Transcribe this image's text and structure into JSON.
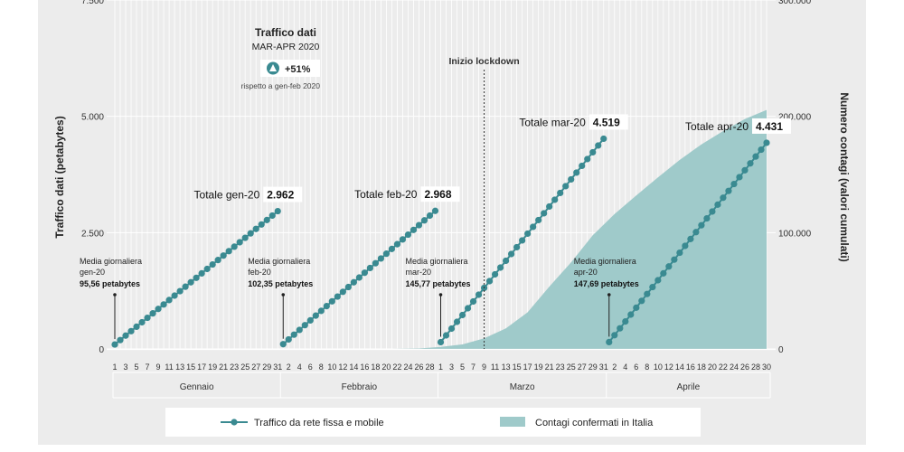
{
  "chart_data": {
    "type": "line",
    "left_axis": {
      "label": "Traffico dati (petabytes)",
      "ticks": [
        "0",
        "2.500",
        "5.000",
        "7.500"
      ],
      "tick_values": [
        0,
        2500,
        5000,
        7500
      ],
      "ylim": [
        0,
        7500
      ]
    },
    "right_axis": {
      "label": "Numero contagi (valori cumulati)",
      "ticks": [
        "0",
        "100.000",
        "200.000",
        "300.000"
      ],
      "tick_values": [
        0,
        100000,
        200000,
        300000
      ],
      "ylim": [
        0,
        300000
      ]
    },
    "months": [
      {
        "name": "Gennaio",
        "days": 31,
        "tick_labels": [
          "1",
          "3",
          "5",
          "7",
          "9",
          "11",
          "13",
          "15",
          "17",
          "19",
          "21",
          "23",
          "25",
          "27",
          "29",
          "31"
        ],
        "total_label": "Totale gen-20",
        "total_value": "2.962",
        "total": 2962,
        "avg_lines": [
          "Media giornaliera",
          "gen-20"
        ],
        "avg_value": "95,56  petabytes",
        "avg": 95.56
      },
      {
        "name": "Febbraio",
        "days": 29,
        "tick_labels": [
          "2",
          "4",
          "6",
          "8",
          "10",
          "12",
          "14",
          "16",
          "18",
          "20",
          "22",
          "24",
          "26",
          "28"
        ],
        "total_label": "Totale feb-20",
        "total_value": "2.968",
        "total": 2968,
        "avg_lines": [
          "Media giornaliera",
          "feb-20"
        ],
        "avg_value": "102,35  petabytes",
        "avg": 102.35
      },
      {
        "name": "Marzo",
        "days": 31,
        "tick_labels": [
          "1",
          "3",
          "5",
          "7",
          "9",
          "11",
          "13",
          "15",
          "17",
          "19",
          "21",
          "23",
          "25",
          "27",
          "29",
          "31"
        ],
        "total_label": "Totale mar-20",
        "total_value": "4.519",
        "total": 4519,
        "avg_lines": [
          "Media giornaliera",
          "mar-20"
        ],
        "avg_value": "145,77  petabytes",
        "avg": 145.77
      },
      {
        "name": "Aprile",
        "days": 30,
        "tick_labels": [
          "2",
          "4",
          "6",
          "8",
          "10",
          "12",
          "14",
          "16",
          "18",
          "20",
          "22",
          "24",
          "26",
          "28",
          "30"
        ],
        "total_label": "Totale apr-20",
        "total_value": "4.431",
        "total": 4431,
        "avg_lines": [
          "Media giornaliera",
          "apr-20"
        ],
        "avg_value": "147,69  petabytes",
        "avg": 147.69
      }
    ],
    "contagi_series": {
      "name": "Contagi confermati in Italia",
      "points": [
        [
          "2020-02-21",
          0
        ],
        [
          "2020-02-26",
          400
        ],
        [
          "2020-03-01",
          1700
        ],
        [
          "2020-03-05",
          3900
        ],
        [
          "2020-03-09",
          9200
        ],
        [
          "2020-03-13",
          17700
        ],
        [
          "2020-03-17",
          31500
        ],
        [
          "2020-03-21",
          53600
        ],
        [
          "2020-03-25",
          74400
        ],
        [
          "2020-03-29",
          97700
        ],
        [
          "2020-04-02",
          116000
        ],
        [
          "2020-04-06",
          132000
        ],
        [
          "2020-04-10",
          147500
        ],
        [
          "2020-04-14",
          162500
        ],
        [
          "2020-04-18",
          175900
        ],
        [
          "2020-04-22",
          187300
        ],
        [
          "2020-04-26",
          197700
        ],
        [
          "2020-04-30",
          205500
        ]
      ]
    },
    "lockdown": {
      "date": "2020-03-09",
      "label": "Inizio lockdown"
    },
    "legend": [
      {
        "label": "Traffico da rete fissa e mobile",
        "kind": "line-dots",
        "color": "#3a8a91"
      },
      {
        "label": "Contagi confermati in Italia",
        "kind": "area",
        "color": "#9fcaca"
      }
    ],
    "colors": {
      "line": "#3a8a91",
      "area": "#9fcaca",
      "grid": "#ffffff",
      "background": "#ececec"
    }
  },
  "header": {
    "title": "Traffico dati",
    "subtitle": "MAR-APR 2020",
    "badge_value": "+51%",
    "badge_icon": "triangle-up-icon",
    "note": "rispetto a gen-feb 2020"
  }
}
